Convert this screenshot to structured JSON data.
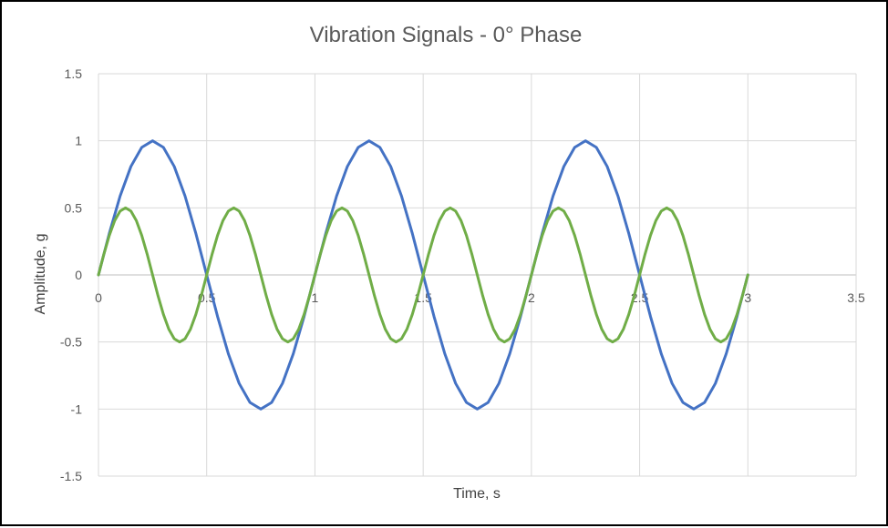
{
  "chart_data": {
    "type": "line",
    "title": "Vibration Signals - 0° Phase",
    "xlabel": "Time, s",
    "ylabel": "Amplitude, g",
    "xlim": [
      0,
      3.5
    ],
    "ylim": [
      -1.5,
      1.5
    ],
    "xticks": [
      0,
      0.5,
      1,
      1.5,
      2,
      2.5,
      3,
      3.5
    ],
    "yticks": [
      -1.5,
      -1,
      -0.5,
      0,
      0.5,
      1,
      1.5
    ],
    "xtick_labels": [
      "0",
      "0.5",
      "1",
      "1.5",
      "2",
      "2.5",
      "3",
      "3.5"
    ],
    "ytick_labels": [
      "-1.5",
      "-1",
      "-0.5",
      "0",
      "0.5",
      "1",
      "1.5"
    ],
    "grid": true,
    "legend": "none",
    "series": [
      {
        "color": "#4472C4",
        "x": [
          0,
          0.05,
          0.1,
          0.15,
          0.2,
          0.25,
          0.3,
          0.35,
          0.4,
          0.45,
          0.5,
          0.55,
          0.6,
          0.65,
          0.7,
          0.75,
          0.8,
          0.85,
          0.9,
          0.95,
          1,
          1.05,
          1.1,
          1.15,
          1.2,
          1.25,
          1.3,
          1.35,
          1.4,
          1.45,
          1.5,
          1.55,
          1.6,
          1.65,
          1.7,
          1.75,
          1.8,
          1.85,
          1.9,
          1.95,
          2,
          2.05,
          2.1,
          2.15,
          2.2,
          2.25,
          2.3,
          2.35,
          2.4,
          2.45,
          2.5,
          2.55,
          2.6,
          2.65,
          2.7,
          2.75,
          2.8,
          2.85,
          2.9,
          2.95,
          3
        ],
        "y": [
          0,
          0.309,
          0.588,
          0.809,
          0.951,
          1,
          0.951,
          0.809,
          0.588,
          0.309,
          0,
          -0.309,
          -0.588,
          -0.809,
          -0.951,
          -1,
          -0.951,
          -0.809,
          -0.588,
          -0.309,
          0,
          0.309,
          0.588,
          0.809,
          0.951,
          1,
          0.951,
          0.809,
          0.588,
          0.309,
          0,
          -0.309,
          -0.588,
          -0.809,
          -0.951,
          -1,
          -0.951,
          -0.809,
          -0.588,
          -0.309,
          0,
          0.309,
          0.588,
          0.809,
          0.951,
          1,
          0.951,
          0.809,
          0.588,
          0.309,
          0,
          -0.309,
          -0.588,
          -0.809,
          -0.951,
          -1,
          -0.951,
          -0.809,
          -0.588,
          -0.309,
          0
        ]
      },
      {
        "color": "#70AD47",
        "x": [
          0,
          0.025,
          0.05,
          0.075,
          0.1,
          0.125,
          0.15,
          0.175,
          0.2,
          0.225,
          0.25,
          0.275,
          0.3,
          0.325,
          0.35,
          0.375,
          0.4,
          0.425,
          0.45,
          0.475,
          0.5,
          0.525,
          0.55,
          0.575,
          0.6,
          0.625,
          0.65,
          0.675,
          0.7,
          0.725,
          0.75,
          0.775,
          0.8,
          0.825,
          0.85,
          0.875,
          0.9,
          0.925,
          0.95,
          0.975,
          1,
          1.025,
          1.05,
          1.075,
          1.1,
          1.125,
          1.15,
          1.175,
          1.2,
          1.225,
          1.25,
          1.275,
          1.3,
          1.325,
          1.35,
          1.375,
          1.4,
          1.425,
          1.45,
          1.475,
          1.5,
          1.525,
          1.55,
          1.575,
          1.6,
          1.625,
          1.65,
          1.675,
          1.7,
          1.725,
          1.75,
          1.775,
          1.8,
          1.825,
          1.85,
          1.875,
          1.9,
          1.925,
          1.95,
          1.975,
          2,
          2.025,
          2.05,
          2.075,
          2.1,
          2.125,
          2.15,
          2.175,
          2.2,
          2.225,
          2.25,
          2.275,
          2.3,
          2.325,
          2.35,
          2.375,
          2.4,
          2.425,
          2.45,
          2.475,
          2.5,
          2.525,
          2.55,
          2.575,
          2.6,
          2.625,
          2.65,
          2.675,
          2.7,
          2.725,
          2.75,
          2.775,
          2.8,
          2.825,
          2.85,
          2.875,
          2.9,
          2.925,
          2.95,
          2.975,
          3
        ],
        "y": [
          0,
          0.155,
          0.294,
          0.405,
          0.476,
          0.5,
          0.476,
          0.405,
          0.294,
          0.155,
          0,
          -0.155,
          -0.294,
          -0.405,
          -0.476,
          -0.5,
          -0.476,
          -0.405,
          -0.294,
          -0.155,
          0,
          0.155,
          0.294,
          0.405,
          0.476,
          0.5,
          0.476,
          0.405,
          0.294,
          0.155,
          0,
          -0.155,
          -0.294,
          -0.405,
          -0.476,
          -0.5,
          -0.476,
          -0.405,
          -0.294,
          -0.155,
          0,
          0.155,
          0.294,
          0.405,
          0.476,
          0.5,
          0.476,
          0.405,
          0.294,
          0.155,
          0,
          -0.155,
          -0.294,
          -0.405,
          -0.476,
          -0.5,
          -0.476,
          -0.405,
          -0.294,
          -0.155,
          0,
          0.155,
          0.294,
          0.405,
          0.476,
          0.5,
          0.476,
          0.405,
          0.294,
          0.155,
          0,
          -0.155,
          -0.294,
          -0.405,
          -0.476,
          -0.5,
          -0.476,
          -0.405,
          -0.294,
          -0.155,
          0,
          0.155,
          0.294,
          0.405,
          0.476,
          0.5,
          0.476,
          0.405,
          0.294,
          0.155,
          0,
          -0.155,
          -0.294,
          -0.405,
          -0.476,
          -0.5,
          -0.476,
          -0.405,
          -0.294,
          -0.155,
          0,
          0.155,
          0.294,
          0.405,
          0.476,
          0.5,
          0.476,
          0.405,
          0.294,
          0.155,
          0,
          -0.155,
          -0.294,
          -0.405,
          -0.476,
          -0.5,
          -0.476,
          -0.405,
          -0.294,
          -0.155,
          0
        ]
      }
    ]
  }
}
